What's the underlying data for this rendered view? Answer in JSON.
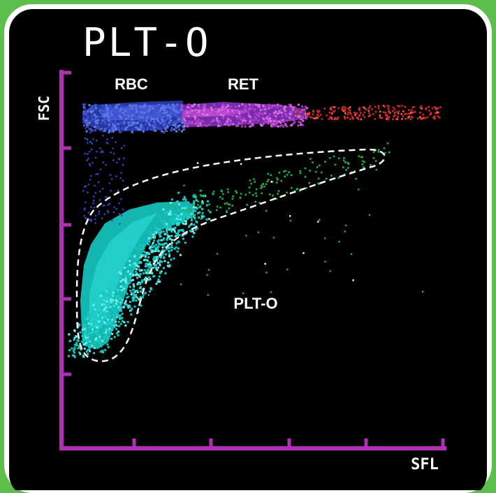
{
  "chart_data": {
    "type": "scatter",
    "title": "PLT-O",
    "xlabel": "SFL",
    "ylabel": "FSC",
    "grid": false,
    "legend": "none",
    "x_ticks": 4,
    "y_ticks": 4,
    "regions": [
      {
        "name": "RBC",
        "color": "#3a4fd0"
      },
      {
        "name": "RET",
        "color": "#b03cd0"
      },
      {
        "name": "PLT-O",
        "color": "#17c9c3"
      }
    ],
    "gate": {
      "label": "PLT-O",
      "style": "dashed"
    }
  },
  "colors": {
    "background": "#000000",
    "axis": "#b02fb5",
    "frame": "#ffffff",
    "outer": "#5cbf4c",
    "rbc": "#3a4fd0",
    "ret": "#b03cd0",
    "ret_high": "#d02a2a",
    "plt": "#17c9c3",
    "green": "#1fae4a",
    "white": "#ffffff"
  }
}
